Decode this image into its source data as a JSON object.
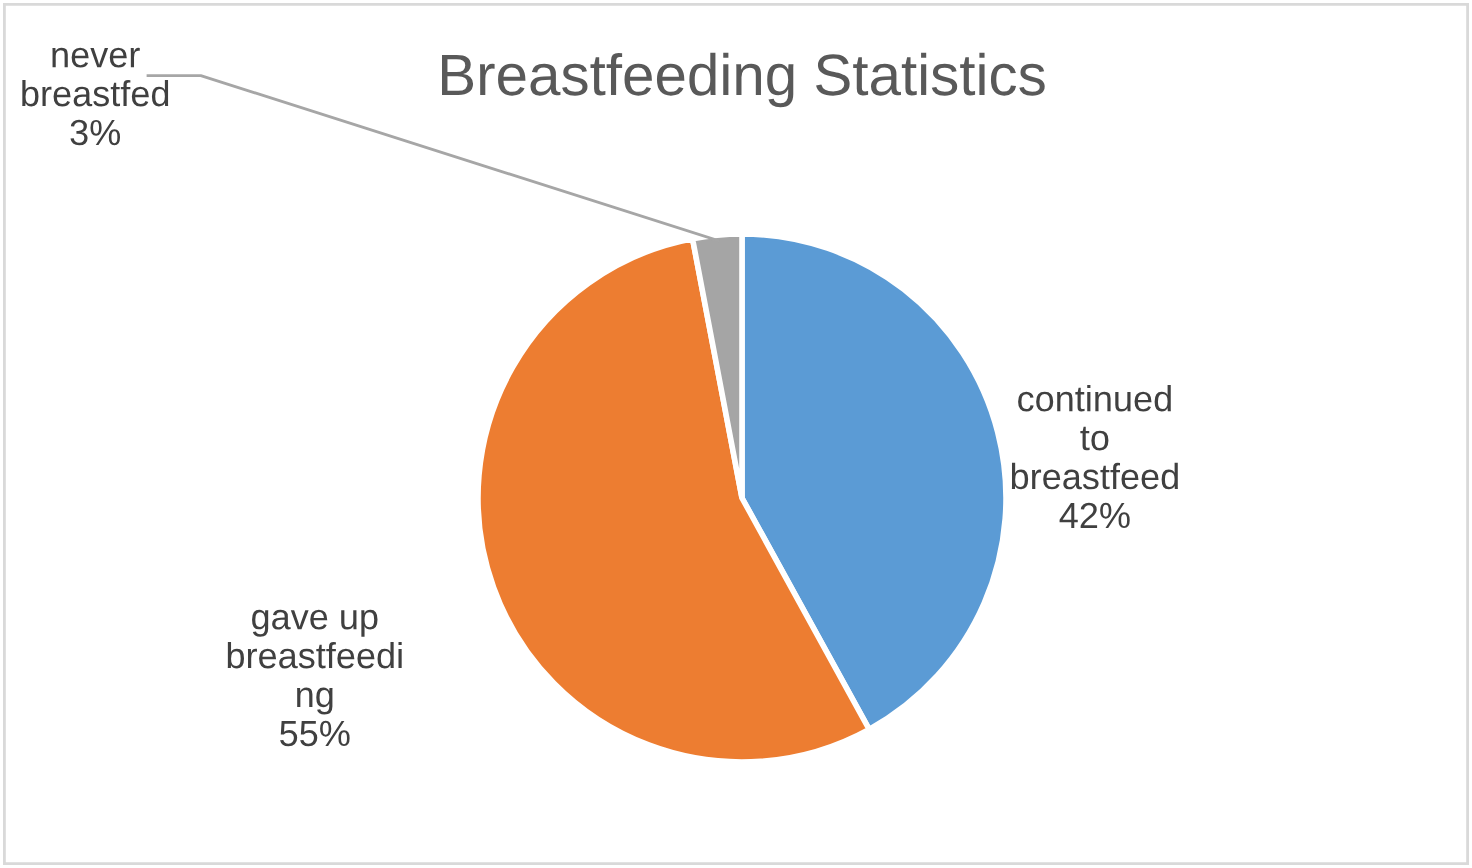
{
  "chart_data": {
    "type": "pie",
    "title": "Breastfeeding Statistics",
    "categories": [
      "continued\nto\nbreastfeed",
      "gave up\nbreastfeedi\nng",
      "never\nbreastfed"
    ],
    "values": [
      42,
      55,
      3
    ],
    "colors": [
      "#5b9bd5",
      "#ed7d31",
      "#a5a5a5"
    ],
    "value_labels": [
      "42%",
      "55%",
      "3%"
    ],
    "legend": false
  }
}
